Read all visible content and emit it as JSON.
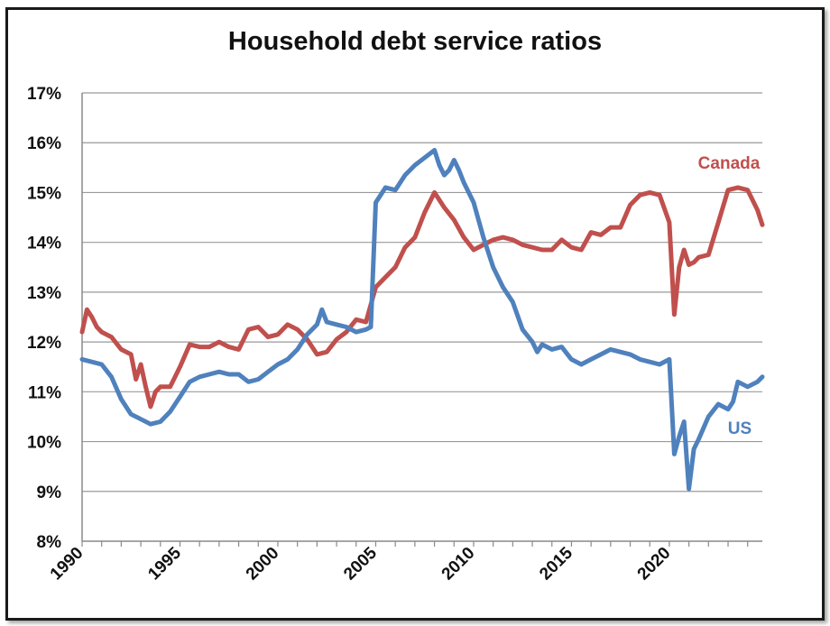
{
  "chart_data": {
    "type": "line",
    "title": "Household debt service ratios",
    "xlabel": "",
    "ylabel": "",
    "xlim": [
      1990,
      2024.75
    ],
    "ylim": [
      8,
      17
    ],
    "y_ticks": [
      "8%",
      "9%",
      "10%",
      "11%",
      "12%",
      "13%",
      "14%",
      "15%",
      "16%",
      "17%"
    ],
    "x_ticks": [
      "1990",
      "1995",
      "2000",
      "2005",
      "2010",
      "2015",
      "2020"
    ],
    "grid": true,
    "series": [
      {
        "name": "Canada",
        "color": "#c0504d",
        "x": [
          1990,
          1990.25,
          1990.5,
          1990.75,
          1991,
          1991.5,
          1992,
          1992.5,
          1992.75,
          1993,
          1993.25,
          1993.5,
          1993.75,
          1994,
          1994.5,
          1995,
          1995.5,
          1996,
          1996.5,
          1997,
          1997.5,
          1998,
          1998.5,
          1999,
          1999.5,
          2000,
          2000.5,
          2001,
          2001.5,
          2002,
          2002.5,
          2003,
          2003.5,
          2004,
          2004.5,
          2005,
          2005.5,
          2006,
          2006.5,
          2007,
          2007.5,
          2008,
          2008.5,
          2009,
          2009.5,
          2010,
          2010.5,
          2011,
          2011.5,
          2012,
          2012.5,
          2013,
          2013.5,
          2014,
          2014.5,
          2015,
          2015.5,
          2016,
          2016.5,
          2017,
          2017.5,
          2018,
          2018.5,
          2019,
          2019.5,
          2020,
          2020.25,
          2020.5,
          2020.75,
          2021,
          2021.25,
          2021.5,
          2022,
          2022.5,
          2023,
          2023.5,
          2024,
          2024.5,
          2024.75
        ],
        "values": [
          12.2,
          12.65,
          12.5,
          12.3,
          12.2,
          12.1,
          11.85,
          11.75,
          11.25,
          11.55,
          11.1,
          10.7,
          11.0,
          11.1,
          11.1,
          11.5,
          11.95,
          11.9,
          11.9,
          12.0,
          11.9,
          11.85,
          12.25,
          12.3,
          12.1,
          12.15,
          12.35,
          12.25,
          12.05,
          11.75,
          11.8,
          12.05,
          12.2,
          12.45,
          12.4,
          13.1,
          13.3,
          13.5,
          13.9,
          14.1,
          14.6,
          15.0,
          14.7,
          14.45,
          14.1,
          13.85,
          13.95,
          14.05,
          14.1,
          14.05,
          13.95,
          13.9,
          13.85,
          13.85,
          14.05,
          13.9,
          13.85,
          14.2,
          14.15,
          14.3,
          14.3,
          14.75,
          14.95,
          15.0,
          14.95,
          14.4,
          12.55,
          13.5,
          13.85,
          13.55,
          13.6,
          13.7,
          13.75,
          14.4,
          15.05,
          15.1,
          15.05,
          14.65,
          14.35
        ]
      },
      {
        "name": "US",
        "color": "#4f81bd",
        "x": [
          1990,
          1990.5,
          1991,
          1991.5,
          1992,
          1992.5,
          1993,
          1993.5,
          1994,
          1994.5,
          1995,
          1995.5,
          1996,
          1996.5,
          1997,
          1997.5,
          1998,
          1998.5,
          1999,
          1999.5,
          2000,
          2000.5,
          2001,
          2001.5,
          2002,
          2002.25,
          2002.5,
          2003,
          2003.5,
          2004,
          2004.5,
          2004.75,
          2005,
          2005.25,
          2005.5,
          2006,
          2006.5,
          2007,
          2007.5,
          2008,
          2008.25,
          2008.5,
          2008.75,
          2009,
          2009.25,
          2009.5,
          2010,
          2010.5,
          2011,
          2011.5,
          2012,
          2012.5,
          2013,
          2013.25,
          2013.5,
          2014,
          2014.5,
          2015,
          2015.5,
          2016,
          2016.5,
          2017,
          2017.5,
          2018,
          2018.5,
          2019,
          2019.5,
          2020,
          2020.25,
          2020.5,
          2020.75,
          2021,
          2021.25,
          2021.5,
          2022,
          2022.5,
          2023,
          2023.25,
          2023.5,
          2024,
          2024.5,
          2024.75
        ],
        "values": [
          11.65,
          11.6,
          11.55,
          11.3,
          10.85,
          10.55,
          10.45,
          10.35,
          10.4,
          10.6,
          10.9,
          11.2,
          11.3,
          11.35,
          11.4,
          11.35,
          11.35,
          11.2,
          11.25,
          11.4,
          11.55,
          11.65,
          11.85,
          12.15,
          12.35,
          12.65,
          12.4,
          12.35,
          12.3,
          12.2,
          12.25,
          12.3,
          14.8,
          14.95,
          15.1,
          15.05,
          15.35,
          15.55,
          15.7,
          15.85,
          15.55,
          15.35,
          15.45,
          15.65,
          15.45,
          15.2,
          14.8,
          14.1,
          13.5,
          13.1,
          12.8,
          12.25,
          12.0,
          11.8,
          11.95,
          11.85,
          11.9,
          11.65,
          11.55,
          11.65,
          11.75,
          11.85,
          11.8,
          11.75,
          11.65,
          11.6,
          11.55,
          11.65,
          9.75,
          10.1,
          10.4,
          9.05,
          9.85,
          10.05,
          10.5,
          10.75,
          10.65,
          10.8,
          11.2,
          11.1,
          11.2,
          11.3
        ]
      }
    ]
  }
}
